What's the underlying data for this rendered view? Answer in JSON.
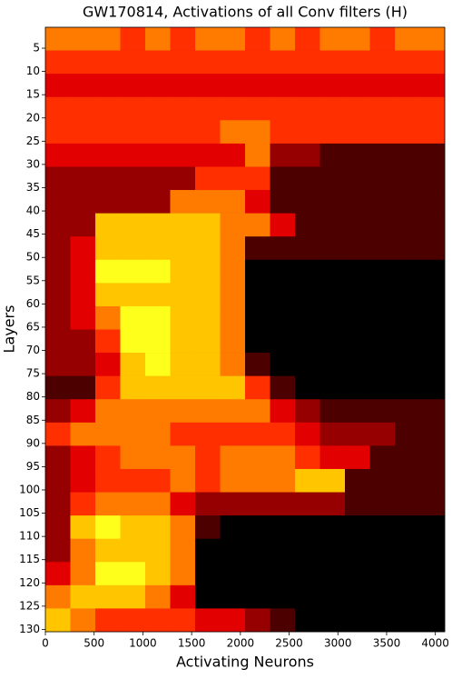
{
  "chart_data": {
    "type": "heatmap",
    "title": "GW170814, Activations of all Conv filters (H)",
    "x_label": "Activating Neurons",
    "y_label": "Layers",
    "colormap": "hot",
    "zlim": [
      0,
      9
    ],
    "y_inverted": true,
    "xlim": [
      0,
      4096
    ],
    "ylim": [
      0.5,
      130.5
    ],
    "xticks": [
      0,
      500,
      1000,
      1500,
      2000,
      2500,
      3000,
      3500,
      4000
    ],
    "yticks": [
      5,
      10,
      15,
      20,
      25,
      30,
      35,
      40,
      45,
      50,
      55,
      60,
      65,
      70,
      75,
      80,
      85,
      90,
      95,
      100,
      105,
      110,
      115,
      120,
      125,
      130
    ],
    "x_bins": [
      0,
      256,
      512,
      768,
      1024,
      1280,
      1536,
      1792,
      2048,
      2304,
      2560,
      2816,
      3072,
      3328,
      3584,
      3840,
      4096
    ],
    "y_bins": [
      0.5,
      5.5,
      10.5,
      15.5,
      20.5,
      25.5,
      30.5,
      35.5,
      40.5,
      45.5,
      50.5,
      55.5,
      60.5,
      65.5,
      70.5,
      75.5,
      80.5,
      85.5,
      90.5,
      95.5,
      100.5,
      105.5,
      110.5,
      115.5,
      120.5,
      125.5,
      130.5
    ],
    "z": [
      [
        5,
        5,
        5,
        4,
        5,
        4,
        5,
        5,
        4,
        5,
        4,
        5,
        5,
        4,
        5,
        5
      ],
      [
        4,
        4,
        4,
        4,
        4,
        4,
        4,
        4,
        4,
        4,
        4,
        4,
        4,
        4,
        4,
        4
      ],
      [
        3,
        3,
        3,
        3,
        3,
        3,
        3,
        3,
        3,
        3,
        3,
        3,
        3,
        3,
        3,
        3
      ],
      [
        4,
        4,
        4,
        4,
        4,
        4,
        4,
        4,
        4,
        4,
        4,
        4,
        4,
        4,
        4,
        4
      ],
      [
        4,
        4,
        4,
        4,
        4,
        4,
        4,
        5,
        5,
        4,
        4,
        4,
        4,
        4,
        4,
        4
      ],
      [
        3,
        3,
        3,
        3,
        3,
        3,
        3,
        3,
        5,
        2,
        2,
        1,
        1,
        1,
        1,
        1
      ],
      [
        2,
        2,
        2,
        2,
        2,
        2,
        4,
        4,
        4,
        1,
        1,
        1,
        1,
        1,
        1,
        1
      ],
      [
        2,
        2,
        2,
        2,
        2,
        5,
        5,
        5,
        3,
        1,
        1,
        1,
        1,
        1,
        1,
        1
      ],
      [
        2,
        2,
        6,
        6,
        6,
        6,
        6,
        5,
        5,
        3,
        1,
        1,
        1,
        1,
        1,
        1
      ],
      [
        2,
        3,
        6,
        6,
        6,
        6,
        6,
        5,
        1,
        1,
        1,
        1,
        1,
        1,
        1,
        1
      ],
      [
        2,
        3,
        7,
        7,
        7,
        6,
        6,
        5,
        0,
        0,
        0,
        0,
        0,
        0,
        0,
        0
      ],
      [
        2,
        3,
        6,
        6,
        6,
        6,
        6,
        5,
        0,
        0,
        0,
        0,
        0,
        0,
        0,
        0
      ],
      [
        2,
        3,
        5,
        7,
        7,
        6,
        6,
        5,
        0,
        0,
        0,
        0,
        0,
        0,
        0,
        0
      ],
      [
        2,
        2,
        4,
        7,
        7,
        6,
        6,
        5,
        0,
        0,
        0,
        0,
        0,
        0,
        0,
        0
      ],
      [
        2,
        2,
        3,
        6,
        7,
        6,
        6,
        5,
        1,
        0,
        0,
        0,
        0,
        0,
        0,
        0
      ],
      [
        1,
        1,
        4,
        6,
        6,
        6,
        6,
        6,
        4,
        1,
        0,
        0,
        0,
        0,
        0,
        0
      ],
      [
        2,
        3,
        5,
        5,
        5,
        5,
        5,
        5,
        5,
        3,
        2,
        1,
        1,
        1,
        1,
        1
      ],
      [
        4,
        5,
        5,
        5,
        5,
        4,
        4,
        4,
        4,
        4,
        3,
        2,
        2,
        2,
        1,
        1
      ],
      [
        2,
        3,
        4,
        5,
        5,
        5,
        4,
        5,
        5,
        5,
        4,
        3,
        3,
        1,
        1,
        1
      ],
      [
        2,
        3,
        4,
        4,
        4,
        5,
        4,
        5,
        5,
        5,
        6,
        6,
        1,
        1,
        1,
        1
      ],
      [
        2,
        4,
        5,
        5,
        5,
        3,
        2,
        2,
        2,
        2,
        2,
        2,
        1,
        1,
        1,
        1
      ],
      [
        2,
        6,
        7,
        6,
        6,
        5,
        1,
        0,
        0,
        0,
        0,
        0,
        0,
        0,
        0,
        0
      ],
      [
        2,
        5,
        6,
        6,
        6,
        5,
        0,
        0,
        0,
        0,
        0,
        0,
        0,
        0,
        0,
        0
      ],
      [
        3,
        5,
        7,
        7,
        6,
        5,
        0,
        0,
        0,
        0,
        0,
        0,
        0,
        0,
        0,
        0
      ],
      [
        5,
        6,
        6,
        6,
        5,
        3,
        0,
        0,
        0,
        0,
        0,
        0,
        0,
        0,
        0,
        0
      ],
      [
        6,
        5,
        4,
        4,
        4,
        4,
        3,
        3,
        2,
        1,
        0,
        0,
        0,
        0,
        0,
        0
      ]
    ]
  }
}
